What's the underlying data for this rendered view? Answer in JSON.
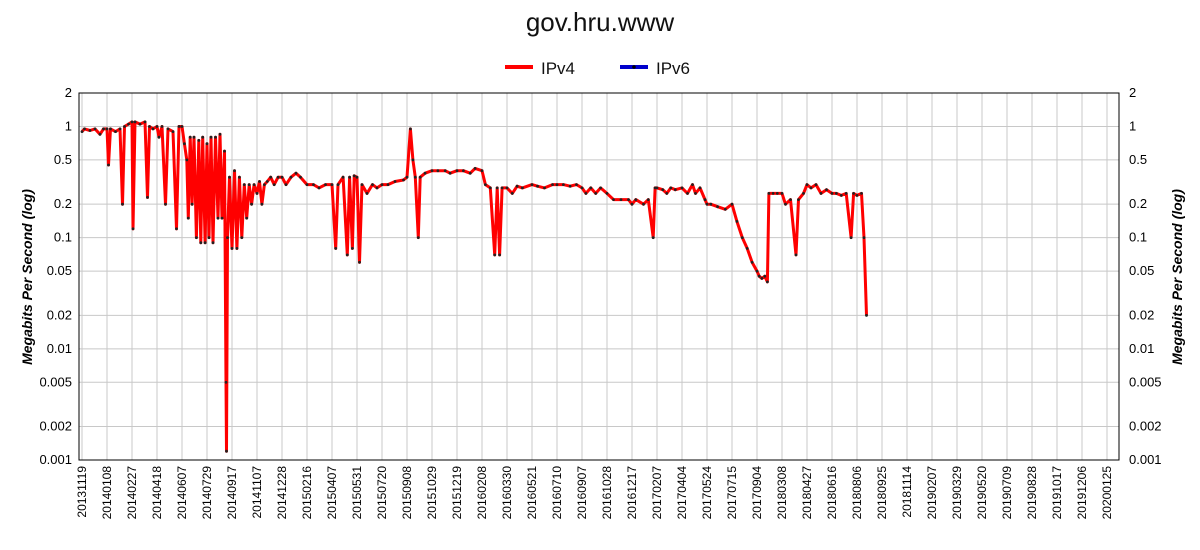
{
  "chart_data": {
    "type": "line",
    "title": "gov.hru.www",
    "ylabel": "Megabits Per Second (log)",
    "yscale": "log",
    "ylim": [
      0.001,
      2
    ],
    "grid": true,
    "legend_position": "top-center",
    "yticks": [
      {
        "value": 2,
        "label": "2"
      },
      {
        "value": 1,
        "label": "1"
      },
      {
        "value": 0.5,
        "label": "0.5"
      },
      {
        "value": 0.2,
        "label": "0.2"
      },
      {
        "value": 0.1,
        "label": "0.1"
      },
      {
        "value": 0.05,
        "label": "0.05"
      },
      {
        "value": 0.02,
        "label": "0.02"
      },
      {
        "value": 0.01,
        "label": "0.01"
      },
      {
        "value": 0.005,
        "label": "0.005"
      },
      {
        "value": 0.002,
        "label": "0.002"
      },
      {
        "value": 0.001,
        "label": "0.001"
      }
    ],
    "xticks": [
      "20131119",
      "20140108",
      "20140227",
      "20140418",
      "20140607",
      "20140729",
      "20140917",
      "20141107",
      "20141228",
      "20150216",
      "20150407",
      "20150531",
      "20150720",
      "20150908",
      "20151029",
      "20151219",
      "20160208",
      "20160330",
      "20160521",
      "20160710",
      "20160907",
      "20161028",
      "20161217",
      "20170207",
      "20170404",
      "20170524",
      "20170715",
      "20170904",
      "20180308",
      "20180427",
      "20180616",
      "20180806",
      "20180925",
      "20181114",
      "20190207",
      "20190329",
      "20190520",
      "20190709",
      "20190828",
      "20191017",
      "20191206",
      "20200125"
    ],
    "series": [
      {
        "name": "IPv4",
        "color": "#ff0000",
        "points": [
          [
            "20131119",
            0.9
          ],
          [
            "20131124",
            0.95
          ],
          [
            "20131205",
            0.92
          ],
          [
            "20131215",
            0.95
          ],
          [
            "20131225",
            0.85
          ],
          [
            "20140101",
            0.95
          ],
          [
            "20140108",
            0.95
          ],
          [
            "20140111",
            0.45
          ],
          [
            "20140115",
            0.95
          ],
          [
            "20140125",
            0.9
          ],
          [
            "20140203",
            0.95
          ],
          [
            "20140208",
            0.2
          ],
          [
            "20140212",
            1.0
          ],
          [
            "20140220",
            1.05
          ],
          [
            "20140227",
            1.1
          ],
          [
            "20140301",
            0.12
          ],
          [
            "20140305",
            1.1
          ],
          [
            "20140315",
            1.05
          ],
          [
            "20140325",
            1.1
          ],
          [
            "20140330",
            0.23
          ],
          [
            "20140403",
            1.0
          ],
          [
            "20140410",
            0.95
          ],
          [
            "20140418",
            1.0
          ],
          [
            "20140422",
            0.8
          ],
          [
            "20140428",
            1.0
          ],
          [
            "20140505",
            0.2
          ],
          [
            "20140510",
            0.95
          ],
          [
            "20140520",
            0.9
          ],
          [
            "20140527",
            0.12
          ],
          [
            "20140601",
            1.0
          ],
          [
            "20140607",
            1.0
          ],
          [
            "20140612",
            0.7
          ],
          [
            "20140617",
            0.5
          ],
          [
            "20140620",
            0.15
          ],
          [
            "20140624",
            0.8
          ],
          [
            "20140628",
            0.2
          ],
          [
            "20140702",
            0.8
          ],
          [
            "20140707",
            0.1
          ],
          [
            "20140712",
            0.75
          ],
          [
            "20140716",
            0.09
          ],
          [
            "20140720",
            0.8
          ],
          [
            "20140725",
            0.09
          ],
          [
            "20140729",
            0.7
          ],
          [
            "20140802",
            0.1
          ],
          [
            "20140806",
            0.8
          ],
          [
            "20140810",
            0.09
          ],
          [
            "20140815",
            0.8
          ],
          [
            "20140820",
            0.15
          ],
          [
            "20140824",
            0.85
          ],
          [
            "20140828",
            0.15
          ],
          [
            "20140902",
            0.6
          ],
          [
            "20140905",
            0.005
          ],
          [
            "20140906",
            0.0012
          ],
          [
            "20140908",
            0.1
          ],
          [
            "20140912",
            0.35
          ],
          [
            "20140917",
            0.08
          ],
          [
            "20140922",
            0.4
          ],
          [
            "20140927",
            0.08
          ],
          [
            "20141002",
            0.35
          ],
          [
            "20141007",
            0.1
          ],
          [
            "20141012",
            0.3
          ],
          [
            "20141017",
            0.15
          ],
          [
            "20141022",
            0.3
          ],
          [
            "20141027",
            0.2
          ],
          [
            "20141101",
            0.3
          ],
          [
            "20141107",
            0.25
          ],
          [
            "20141112",
            0.32
          ],
          [
            "20141117",
            0.2
          ],
          [
            "20141122",
            0.3
          ],
          [
            "20141128",
            0.32
          ],
          [
            "20141205",
            0.35
          ],
          [
            "20141212",
            0.3
          ],
          [
            "20141220",
            0.35
          ],
          [
            "20141228",
            0.35
          ],
          [
            "20150105",
            0.3
          ],
          [
            "20150115",
            0.35
          ],
          [
            "20150125",
            0.38
          ],
          [
            "20150203",
            0.35
          ],
          [
            "20150216",
            0.3
          ],
          [
            "20150301",
            0.3
          ],
          [
            "20150312",
            0.28
          ],
          [
            "20150325",
            0.3
          ],
          [
            "20150407",
            0.3
          ],
          [
            "20150415",
            0.08
          ],
          [
            "20150420",
            0.3
          ],
          [
            "20150501",
            0.35
          ],
          [
            "20150510",
            0.07
          ],
          [
            "20150515",
            0.35
          ],
          [
            "20150521",
            0.08
          ],
          [
            "20150525",
            0.36
          ],
          [
            "20150531",
            0.35
          ],
          [
            "20150605",
            0.06
          ],
          [
            "20150610",
            0.3
          ],
          [
            "20150620",
            0.25
          ],
          [
            "20150701",
            0.3
          ],
          [
            "20150710",
            0.28
          ],
          [
            "20150720",
            0.3
          ],
          [
            "20150801",
            0.3
          ],
          [
            "20150815",
            0.32
          ],
          [
            "20150901",
            0.33
          ],
          [
            "20150908",
            0.35
          ],
          [
            "20150915",
            0.95
          ],
          [
            "20150920",
            0.5
          ],
          [
            "20150925",
            0.35
          ],
          [
            "20151001",
            0.1
          ],
          [
            "20151005",
            0.35
          ],
          [
            "20151015",
            0.38
          ],
          [
            "20151029",
            0.4
          ],
          [
            "20151110",
            0.4
          ],
          [
            "20151125",
            0.4
          ],
          [
            "20151205",
            0.38
          ],
          [
            "20151219",
            0.4
          ],
          [
            "20160101",
            0.4
          ],
          [
            "20160115",
            0.38
          ],
          [
            "20160125",
            0.42
          ],
          [
            "20160208",
            0.4
          ],
          [
            "20160215",
            0.3
          ],
          [
            "20160225",
            0.28
          ],
          [
            "20160305",
            0.07
          ],
          [
            "20160310",
            0.28
          ],
          [
            "20160315",
            0.07
          ],
          [
            "20160320",
            0.28
          ],
          [
            "20160330",
            0.28
          ],
          [
            "20160410",
            0.25
          ],
          [
            "20160420",
            0.29
          ],
          [
            "20160501",
            0.28
          ],
          [
            "20160521",
            0.3
          ],
          [
            "20160601",
            0.29
          ],
          [
            "20160615",
            0.28
          ],
          [
            "20160701",
            0.3
          ],
          [
            "20160710",
            0.3
          ],
          [
            "20160725",
            0.3
          ],
          [
            "20160810",
            0.29
          ],
          [
            "20160825",
            0.3
          ],
          [
            "20160907",
            0.28
          ],
          [
            "20160915",
            0.25
          ],
          [
            "20160925",
            0.28
          ],
          [
            "20161005",
            0.25
          ],
          [
            "20161015",
            0.28
          ],
          [
            "20161028",
            0.25
          ],
          [
            "20161110",
            0.22
          ],
          [
            "20161125",
            0.22
          ],
          [
            "20161210",
            0.22
          ],
          [
            "20161217",
            0.2
          ],
          [
            "20161225",
            0.22
          ],
          [
            "20170110",
            0.2
          ],
          [
            "20170120",
            0.22
          ],
          [
            "20170130",
            0.1
          ],
          [
            "20170203",
            0.28
          ],
          [
            "20170207",
            0.28
          ],
          [
            "20170220",
            0.27
          ],
          [
            "20170301",
            0.25
          ],
          [
            "20170310",
            0.28
          ],
          [
            "20170320",
            0.27
          ],
          [
            "20170404",
            0.28
          ],
          [
            "20170415",
            0.25
          ],
          [
            "20170425",
            0.3
          ],
          [
            "20170501",
            0.25
          ],
          [
            "20170510",
            0.28
          ],
          [
            "20170520",
            0.22
          ],
          [
            "20170524",
            0.2
          ],
          [
            "20170601",
            0.2
          ],
          [
            "20170615",
            0.19
          ],
          [
            "20170701",
            0.18
          ],
          [
            "20170715",
            0.2
          ],
          [
            "20170725",
            0.14
          ],
          [
            "20170805",
            0.1
          ],
          [
            "20170815",
            0.08
          ],
          [
            "20170825",
            0.06
          ],
          [
            "20170904",
            0.05
          ],
          [
            "20170920",
            0.045
          ],
          [
            "20171010",
            0.043
          ],
          [
            "20171101",
            0.045
          ],
          [
            "20171120",
            0.04
          ],
          [
            "20171201",
            0.25
          ],
          [
            "20180101",
            0.25
          ],
          [
            "20180201",
            0.25
          ],
          [
            "20180308",
            0.25
          ],
          [
            "20180315",
            0.2
          ],
          [
            "20180325",
            0.22
          ],
          [
            "20180405",
            0.07
          ],
          [
            "20180410",
            0.22
          ],
          [
            "20180420",
            0.25
          ],
          [
            "20180427",
            0.3
          ],
          [
            "20180505",
            0.28
          ],
          [
            "20180515",
            0.3
          ],
          [
            "20180525",
            0.25
          ],
          [
            "20180605",
            0.27
          ],
          [
            "20180616",
            0.25
          ],
          [
            "20180625",
            0.25
          ],
          [
            "20180705",
            0.24
          ],
          [
            "20180715",
            0.25
          ],
          [
            "20180725",
            0.1
          ],
          [
            "20180730",
            0.25
          ],
          [
            "20180806",
            0.24
          ],
          [
            "20180815",
            0.25
          ],
          [
            "20180820",
            0.1
          ],
          [
            "20180825",
            0.02
          ]
        ]
      },
      {
        "name": "IPv6",
        "color": "#0000cc",
        "points": []
      }
    ]
  }
}
